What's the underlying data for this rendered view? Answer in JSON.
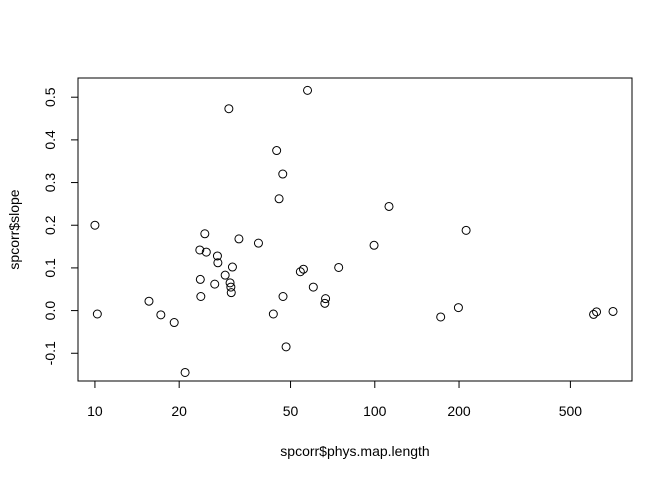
{
  "chart_data": {
    "type": "scatter",
    "title": "",
    "xlabel": "spcorr$phys.map.length",
    "ylabel": "spcorr$slope",
    "x_scale": "log",
    "xlim": [
      8.7,
      830
    ],
    "ylim": [
      -0.165,
      0.545
    ],
    "x_ticks": [
      {
        "value": 10,
        "label": "10"
      },
      {
        "value": 20,
        "label": "20"
      },
      {
        "value": 50,
        "label": "50"
      },
      {
        "value": 100,
        "label": "100"
      },
      {
        "value": 200,
        "label": "200"
      },
      {
        "value": 500,
        "label": "500"
      }
    ],
    "y_ticks": [
      {
        "value": -0.1,
        "label": "-0.1"
      },
      {
        "value": 0.0,
        "label": "0.0"
      },
      {
        "value": 0.1,
        "label": "0.1"
      },
      {
        "value": 0.2,
        "label": "0.2"
      },
      {
        "value": 0.3,
        "label": "0.3"
      },
      {
        "value": 0.4,
        "label": "0.4"
      },
      {
        "value": 0.5,
        "label": "0.5"
      }
    ],
    "grid": false,
    "point_style": "open-circle",
    "points": [
      {
        "x": 10.0,
        "y": 0.2
      },
      {
        "x": 10.2,
        "y": -0.008
      },
      {
        "x": 15.6,
        "y": 0.022
      },
      {
        "x": 17.2,
        "y": -0.01
      },
      {
        "x": 19.2,
        "y": -0.028
      },
      {
        "x": 21.0,
        "y": -0.145
      },
      {
        "x": 23.7,
        "y": 0.142
      },
      {
        "x": 23.8,
        "y": 0.073
      },
      {
        "x": 23.9,
        "y": 0.033
      },
      {
        "x": 24.7,
        "y": 0.18
      },
      {
        "x": 25.0,
        "y": 0.137
      },
      {
        "x": 26.8,
        "y": 0.062
      },
      {
        "x": 27.4,
        "y": 0.128
      },
      {
        "x": 27.5,
        "y": 0.112
      },
      {
        "x": 29.2,
        "y": 0.083
      },
      {
        "x": 30.1,
        "y": 0.473
      },
      {
        "x": 30.4,
        "y": 0.065
      },
      {
        "x": 30.6,
        "y": 0.055
      },
      {
        "x": 30.7,
        "y": 0.042
      },
      {
        "x": 31.0,
        "y": 0.102
      },
      {
        "x": 32.7,
        "y": 0.168
      },
      {
        "x": 38.4,
        "y": 0.158
      },
      {
        "x": 43.4,
        "y": -0.008
      },
      {
        "x": 44.6,
        "y": 0.375
      },
      {
        "x": 45.5,
        "y": 0.262
      },
      {
        "x": 46.9,
        "y": 0.32
      },
      {
        "x": 47.0,
        "y": 0.033
      },
      {
        "x": 48.2,
        "y": -0.085
      },
      {
        "x": 54.2,
        "y": 0.091
      },
      {
        "x": 55.6,
        "y": 0.097
      },
      {
        "x": 57.5,
        "y": 0.516
      },
      {
        "x": 60.3,
        "y": 0.055
      },
      {
        "x": 66.3,
        "y": 0.017
      },
      {
        "x": 66.7,
        "y": 0.028
      },
      {
        "x": 74.3,
        "y": 0.101
      },
      {
        "x": 99.4,
        "y": 0.153
      },
      {
        "x": 112.4,
        "y": 0.244
      },
      {
        "x": 172.0,
        "y": -0.015
      },
      {
        "x": 199.0,
        "y": 0.007
      },
      {
        "x": 212.0,
        "y": 0.188
      },
      {
        "x": 605.0,
        "y": -0.009
      },
      {
        "x": 620.0,
        "y": -0.003
      },
      {
        "x": 710.0,
        "y": -0.002
      }
    ]
  }
}
